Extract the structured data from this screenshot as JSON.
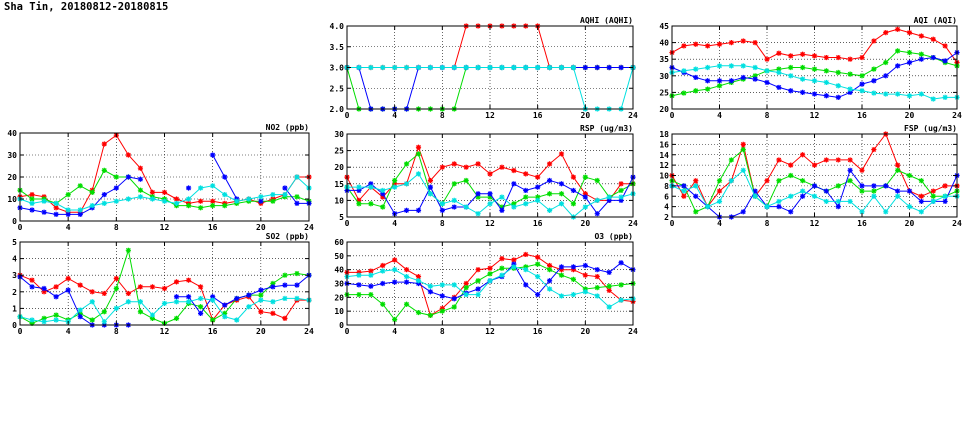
{
  "page": {
    "title": "Sha Tin, 20180812-20180815"
  },
  "colors": {
    "series": [
      "#ff0000",
      "#00dd00",
      "#0000ff",
      "#00e0e0"
    ],
    "axis": "#000000",
    "grid": "#000000"
  },
  "chart_data": [
    {
      "id": "no2",
      "type": "line",
      "title": "NO2 (ppb)",
      "xlim": [
        0,
        24
      ],
      "ylim": [
        0,
        40
      ],
      "xticks": [
        0,
        4,
        8,
        12,
        16,
        20,
        24
      ],
      "yticks": [
        0,
        10,
        20,
        30,
        40
      ],
      "xtick_labels": [
        "0",
        "4",
        "8",
        "12",
        "16",
        "20",
        "24"
      ],
      "ytick_labels": [
        "0",
        "10",
        "20",
        "30",
        "40"
      ],
      "x": [
        0,
        1,
        2,
        3,
        4,
        5,
        6,
        7,
        8,
        9,
        10,
        11,
        12,
        13,
        14,
        15,
        16,
        17,
        18,
        19,
        20,
        21,
        22,
        23,
        24
      ],
      "series": [
        {
          "values": [
            11,
            12,
            11,
            6,
            4,
            4,
            14,
            35,
            39,
            30,
            24,
            13,
            13,
            10,
            8,
            9,
            9,
            8,
            9,
            10,
            8,
            10,
            12,
            20,
            20
          ]
        },
        {
          "values": [
            14,
            10,
            10,
            8,
            12,
            16,
            13,
            23,
            20,
            20,
            14,
            11,
            10,
            7,
            7,
            6,
            7,
            7,
            8,
            9,
            9,
            9,
            11,
            11,
            9
          ]
        },
        {
          "values": [
            6,
            5,
            4,
            3,
            3,
            3,
            6,
            12,
            15,
            20,
            19,
            null,
            null,
            null,
            15,
            null,
            30,
            20,
            10,
            null,
            9,
            null,
            15,
            8,
            8
          ]
        },
        {
          "values": [
            10,
            8,
            9,
            8,
            5,
            5,
            7,
            8,
            9,
            10,
            11,
            10,
            9,
            8,
            10,
            15,
            16,
            12,
            9,
            10,
            11,
            12,
            12,
            20,
            15
          ]
        }
      ]
    },
    {
      "id": "so2",
      "type": "line",
      "title": "SO2 (ppb)",
      "xlim": [
        0,
        24
      ],
      "ylim": [
        0,
        5
      ],
      "xticks": [
        0,
        4,
        8,
        12,
        16,
        20,
        24
      ],
      "yticks": [
        0,
        1,
        2,
        3,
        4,
        5
      ],
      "xtick_labels": [
        "0",
        "4",
        "8",
        "12",
        "16",
        "20",
        "24"
      ],
      "ytick_labels": [
        "0",
        "1",
        "2",
        "3",
        "4",
        "5"
      ],
      "x": [
        0,
        1,
        2,
        3,
        4,
        5,
        6,
        7,
        8,
        9,
        10,
        11,
        12,
        13,
        14,
        15,
        16,
        17,
        18,
        19,
        20,
        21,
        22,
        23,
        24
      ],
      "series": [
        {
          "values": [
            3,
            2.7,
            2.0,
            2.3,
            2.8,
            2.4,
            2.0,
            1.9,
            2.8,
            1.9,
            2.3,
            2.3,
            2.2,
            2.6,
            2.7,
            2.3,
            0.3,
            1.2,
            1.5,
            1.7,
            0.8,
            0.7,
            0.4,
            1.5,
            1.5
          ]
        },
        {
          "values": [
            0.5,
            0.1,
            0.4,
            0.6,
            0.3,
            0.7,
            0.3,
            0.8,
            2.2,
            4.5,
            0.8,
            0.4,
            0.1,
            0.4,
            1.3,
            1.1,
            0.3,
            0.7,
            1.6,
            1.8,
            1.8,
            2.5,
            3.0,
            3.1,
            3.0
          ]
        },
        {
          "values": [
            2.9,
            2.3,
            2.2,
            1.7,
            2.1,
            0.5,
            0.0,
            0.0,
            0.0,
            0.0,
            null,
            null,
            null,
            1.7,
            1.7,
            0.7,
            1.7,
            1.2,
            1.6,
            1.8,
            2.1,
            2.3,
            2.4,
            2.4,
            3.0
          ]
        },
        {
          "values": [
            0.5,
            0.3,
            0.2,
            0.3,
            0.2,
            0.9,
            1.4,
            0.2,
            1.0,
            1.4,
            1.4,
            0.6,
            1.3,
            1.4,
            1.4,
            1.6,
            1.5,
            0.5,
            0.3,
            1.1,
            1.5,
            1.4,
            1.6,
            1.6,
            1.5
          ]
        }
      ]
    },
    {
      "id": "aqhi",
      "type": "line",
      "title": "AQHI (AQHI)",
      "xlim": [
        0,
        24
      ],
      "ylim": [
        2,
        4
      ],
      "xticks": [
        0,
        4,
        8,
        12,
        16,
        20,
        24
      ],
      "yticks": [
        2.0,
        2.5,
        3.0,
        3.5,
        4.0
      ],
      "xtick_labels": [
        "0",
        "4",
        "8",
        "12",
        "16",
        "20",
        "24"
      ],
      "ytick_labels": [
        "2.0",
        "2.5",
        "3.0",
        "3.5",
        "4.0"
      ],
      "x": [
        0,
        1,
        2,
        3,
        4,
        5,
        6,
        7,
        8,
        9,
        10,
        11,
        12,
        13,
        14,
        15,
        16,
        17,
        18,
        19,
        20,
        21,
        22,
        23,
        24
      ],
      "series": [
        {
          "values": [
            3,
            3,
            3,
            3,
            3,
            3,
            3,
            3,
            3,
            3,
            4,
            4,
            4,
            4,
            4,
            4,
            4,
            3,
            3,
            3,
            3,
            3,
            3,
            3,
            3
          ]
        },
        {
          "values": [
            3,
            2,
            2,
            2,
            2,
            2,
            2,
            2,
            2,
            2,
            3,
            3,
            3,
            3,
            3,
            3,
            3,
            3,
            3,
            3,
            3,
            3,
            3,
            3,
            3
          ]
        },
        {
          "values": [
            3,
            3,
            2,
            2,
            2,
            2,
            3,
            3,
            3,
            3,
            3,
            3,
            3,
            3,
            3,
            3,
            3,
            3,
            3,
            3,
            3,
            3,
            3,
            3,
            3
          ]
        },
        {
          "values": [
            3,
            3,
            3,
            3,
            3,
            3,
            3,
            3,
            3,
            3,
            3,
            3,
            3,
            3,
            3,
            3,
            3,
            3,
            3,
            3,
            2,
            2,
            2,
            2,
            3
          ]
        }
      ]
    },
    {
      "id": "rsp",
      "type": "line",
      "title": "RSP (ug/m3)",
      "xlim": [
        0,
        24
      ],
      "ylim": [
        5,
        30
      ],
      "xticks": [
        0,
        4,
        8,
        12,
        16,
        20,
        24
      ],
      "yticks": [
        5,
        10,
        15,
        20,
        25,
        30
      ],
      "xtick_labels": [
        "0",
        "4",
        "8",
        "12",
        "16",
        "20",
        "24"
      ],
      "ytick_labels": [
        "5",
        "10",
        "15",
        "20",
        "25",
        "30"
      ],
      "x": [
        0,
        1,
        2,
        3,
        4,
        5,
        6,
        7,
        8,
        9,
        10,
        11,
        12,
        13,
        14,
        15,
        16,
        17,
        18,
        19,
        20,
        21,
        22,
        23,
        24
      ],
      "series": [
        {
          "values": [
            17,
            10,
            14,
            11,
            15,
            15,
            26,
            16,
            20,
            21,
            20,
            21,
            18,
            20,
            19,
            18,
            17,
            21,
            24,
            17,
            12,
            10,
            10,
            15,
            15
          ]
        },
        {
          "values": [
            14,
            9,
            9,
            8,
            16,
            21,
            24,
            12,
            9,
            15,
            16,
            11,
            11,
            8,
            9,
            11,
            11,
            12,
            12,
            9,
            17,
            16,
            11,
            13,
            15
          ]
        },
        {
          "values": [
            13,
            13,
            15,
            12,
            6,
            7,
            7,
            14,
            7,
            8,
            8,
            12,
            12,
            7,
            15,
            13,
            14,
            16,
            15,
            13,
            11,
            6,
            10,
            10,
            17
          ]
        },
        {
          "values": [
            14,
            14,
            14,
            13,
            14,
            15,
            18,
            12,
            9,
            10,
            8,
            6,
            9,
            11,
            8,
            9,
            10,
            7,
            9,
            5,
            8,
            10,
            11,
            11,
            12
          ]
        }
      ]
    },
    {
      "id": "o3",
      "type": "line",
      "title": "O3 (ppb)",
      "xlim": [
        0,
        24
      ],
      "ylim": [
        0,
        60
      ],
      "xticks": [
        0,
        4,
        8,
        12,
        16,
        20,
        24
      ],
      "yticks": [
        0,
        10,
        20,
        30,
        40,
        50,
        60
      ],
      "xtick_labels": [
        "0",
        "4",
        "8",
        "12",
        "16",
        "20",
        "24"
      ],
      "ytick_labels": [
        "0",
        "10",
        "20",
        "30",
        "40",
        "50",
        "60"
      ],
      "x": [
        0,
        1,
        2,
        3,
        4,
        5,
        6,
        7,
        8,
        9,
        10,
        11,
        12,
        13,
        14,
        15,
        16,
        17,
        18,
        19,
        20,
        21,
        22,
        23,
        24
      ],
      "series": [
        {
          "values": [
            38,
            38,
            39,
            43,
            47,
            40,
            35,
            7,
            12,
            20,
            30,
            40,
            41,
            48,
            47,
            51,
            49,
            43,
            40,
            40,
            36,
            35,
            25,
            18,
            17
          ]
        },
        {
          "values": [
            22,
            22,
            22,
            15,
            4,
            15,
            9,
            7,
            10,
            13,
            27,
            32,
            37,
            41,
            41,
            42,
            44,
            40,
            36,
            33,
            26,
            27,
            28,
            29,
            30
          ]
        },
        {
          "values": [
            30,
            29,
            28,
            30,
            31,
            31,
            30,
            24,
            21,
            19,
            23,
            26,
            32,
            35,
            44,
            29,
            22,
            32,
            42,
            42,
            43,
            40,
            38,
            45,
            40
          ]
        },
        {
          "values": [
            35,
            36,
            36,
            39,
            40,
            35,
            32,
            28,
            29,
            29,
            22,
            22,
            32,
            36,
            42,
            40,
            35,
            26,
            21,
            22,
            24,
            21,
            13,
            18,
            19
          ]
        }
      ]
    },
    {
      "id": "aqi",
      "type": "line",
      "title": "AQI (AQI)",
      "xlim": [
        0,
        24
      ],
      "ylim": [
        20,
        45
      ],
      "xticks": [
        0,
        4,
        8,
        12,
        16,
        20,
        24
      ],
      "yticks": [
        20,
        25,
        30,
        35,
        40,
        45
      ],
      "xtick_labels": [
        "0",
        "4",
        "8",
        "12",
        "16",
        "20",
        "24"
      ],
      "ytick_labels": [
        "20",
        "25",
        "30",
        "35",
        "40",
        "45"
      ],
      "x": [
        0,
        1,
        2,
        3,
        4,
        5,
        6,
        7,
        8,
        9,
        10,
        11,
        12,
        13,
        14,
        15,
        16,
        17,
        18,
        19,
        20,
        21,
        22,
        23,
        24
      ],
      "series": [
        {
          "values": [
            37,
            39,
            39.5,
            39,
            39.5,
            40,
            40.5,
            40,
            35,
            36.8,
            36,
            36.5,
            36,
            35.5,
            35.5,
            35,
            35.5,
            40.5,
            43,
            44,
            43,
            42,
            41,
            39,
            34
          ]
        },
        {
          "values": [
            24,
            24.8,
            25.5,
            26,
            27,
            28,
            29,
            30,
            31.5,
            32,
            32.5,
            32.5,
            32,
            31.5,
            31,
            30.5,
            30,
            32,
            34,
            37.5,
            37,
            36.5,
            35.5,
            34,
            33
          ]
        },
        {
          "values": [
            32.5,
            31,
            29.5,
            28.5,
            28.5,
            28.5,
            29.5,
            29,
            28,
            26.5,
            25.5,
            25,
            24.5,
            24,
            23.5,
            25,
            27.5,
            28.5,
            30,
            33,
            34,
            35,
            35.5,
            34.5,
            37
          ]
        },
        {
          "values": [
            31,
            31.5,
            32,
            32.5,
            33,
            33,
            33,
            32.5,
            31.5,
            31,
            30,
            29,
            28.5,
            28,
            27,
            26,
            25.5,
            24.8,
            24.5,
            24.5,
            24,
            24.5,
            23,
            23.5,
            23.5
          ]
        }
      ]
    },
    {
      "id": "fsp",
      "type": "line",
      "title": "FSP (ug/m3)",
      "xlim": [
        0,
        24
      ],
      "ylim": [
        2,
        18
      ],
      "xticks": [
        0,
        4,
        8,
        12,
        16,
        20,
        24
      ],
      "yticks": [
        2,
        4,
        6,
        8,
        10,
        12,
        14,
        16,
        18
      ],
      "xtick_labels": [
        "0",
        "4",
        "8",
        "12",
        "16",
        "20",
        "24"
      ],
      "ytick_labels": [
        "2",
        "4",
        "6",
        "8",
        "10",
        "12",
        "14",
        "16",
        "18"
      ],
      "x": [
        0,
        1,
        2,
        3,
        4,
        5,
        6,
        7,
        8,
        9,
        10,
        11,
        12,
        13,
        14,
        15,
        16,
        17,
        18,
        19,
        20,
        21,
        22,
        23,
        24
      ],
      "series": [
        {
          "values": [
            10,
            6,
            9,
            4,
            7,
            9,
            16,
            6,
            9,
            13,
            12,
            14,
            12,
            13,
            13,
            13,
            11,
            15,
            18,
            12,
            7,
            6,
            7,
            8,
            8
          ]
        },
        {
          "values": [
            9,
            8,
            3,
            4,
            9,
            13,
            15,
            6,
            4,
            9,
            10,
            9,
            8,
            7,
            8,
            9,
            7,
            7,
            8,
            11,
            10,
            9,
            6,
            6,
            7
          ]
        },
        {
          "values": [
            8,
            8,
            6,
            4,
            2,
            2,
            3,
            7,
            4,
            4,
            3,
            6,
            8,
            7,
            4,
            11,
            8,
            8,
            8,
            7,
            7,
            5,
            5,
            5,
            10
          ]
        },
        {
          "values": [
            8,
            7,
            8,
            4,
            5,
            9,
            11,
            6,
            4,
            5,
            6,
            7,
            6,
            5,
            5,
            5,
            3,
            6,
            3,
            6,
            4,
            3,
            5,
            6,
            6
          ]
        }
      ]
    }
  ]
}
